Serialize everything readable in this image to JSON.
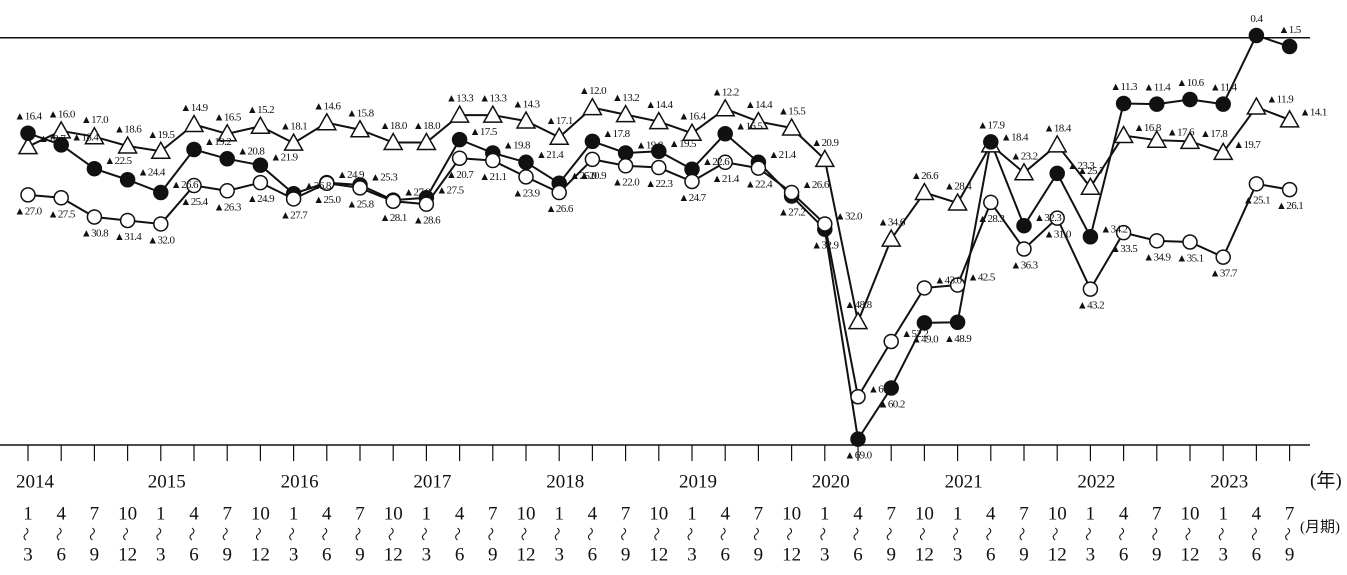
{
  "chart_data": {
    "type": "line",
    "ylim": [
      -70,
      6.5
    ],
    "hlines": [
      0,
      -70
    ],
    "years": [
      2014,
      2015,
      2016,
      2017,
      2018,
      2019,
      2020,
      2021,
      2022,
      2023
    ],
    "x_start": [
      1,
      4,
      7,
      10,
      1,
      4,
      7,
      10,
      1,
      4,
      7,
      10,
      1,
      4,
      7,
      10,
      1,
      4,
      7,
      10,
      1,
      4,
      7,
      10,
      1,
      4,
      7,
      10,
      1,
      4,
      7,
      10,
      1,
      4,
      7,
      10,
      1,
      4,
      7
    ],
    "x_end": [
      3,
      6,
      9,
      12,
      3,
      6,
      9,
      12,
      3,
      6,
      9,
      12,
      3,
      6,
      9,
      12,
      3,
      6,
      9,
      12,
      3,
      6,
      9,
      12,
      3,
      6,
      9,
      12,
      3,
      6,
      9,
      12,
      3,
      6,
      9,
      12,
      3,
      6,
      9
    ],
    "year_unit": "(年)",
    "period_unit": "(月期)",
    "series": [
      {
        "marker": "triangle",
        "color": "#111111",
        "values": [
          -18.7,
          -16.0,
          -17.0,
          -18.6,
          -19.5,
          -14.9,
          -16.5,
          -15.2,
          -18.1,
          -14.6,
          -15.8,
          -18.0,
          -18.0,
          -13.3,
          -13.3,
          -14.3,
          -17.1,
          -12.0,
          -13.2,
          -14.4,
          -16.4,
          -12.2,
          -14.4,
          -15.5,
          -20.9,
          -48.8,
          -34.6,
          -26.6,
          -28.4,
          -18.4,
          -23.2,
          -18.4,
          -25.7,
          -16.8,
          -17.6,
          -17.8,
          -19.7,
          -11.9,
          -14.1
        ],
        "value_labels": [
          "▲18.7",
          "▲16.0",
          "▲17.0",
          "▲18.6",
          "▲19.5",
          "▲14.9",
          "▲16.5",
          "▲15.2",
          "▲18.1",
          "▲14.6",
          "▲15.8",
          "▲18.0",
          "▲18.0",
          "▲13.3",
          "▲13.3",
          "▲14.3",
          "▲17.1",
          "▲12.0",
          "▲13.2",
          "▲14.4",
          "▲16.4",
          "▲12.2",
          "▲14.4",
          "▲15.5",
          "▲20.9",
          "▲48.8",
          "▲34.6",
          "▲26.6",
          "▲28.4",
          "▲18.4",
          "▲23.2",
          "▲18.4",
          "▲25.7",
          "▲16.8",
          "▲17.6",
          "▲17.8",
          "▲19.7",
          "▲11.9",
          "▲14.1"
        ]
      },
      {
        "marker": "filled-circle",
        "color": "#111111",
        "values": [
          -16.4,
          -18.4,
          -22.5,
          -24.4,
          -26.6,
          -19.2,
          -20.8,
          -21.9,
          -26.8,
          -24.9,
          -25.3,
          -27.9,
          -27.5,
          -17.5,
          -19.8,
          -21.4,
          -25.0,
          -17.8,
          -19.8,
          -19.5,
          -22.6,
          -16.5,
          -21.4,
          -27.2,
          -32.9,
          -69.0,
          -60.2,
          -49.0,
          -48.9,
          -17.9,
          -32.3,
          -23.3,
          -34.2,
          -11.3,
          -11.4,
          -10.6,
          -11.4,
          0.4,
          -1.5
        ],
        "value_labels": [
          "▲16.4",
          "▲18.4",
          "▲22.5",
          "▲24.4",
          "▲26.6",
          "▲19.2",
          "▲20.8",
          "▲21.9",
          "▲26.8",
          "▲24.9",
          "▲25.3",
          "▲27.9",
          "▲27.5",
          "▲17.5",
          "▲19.8",
          "▲21.4",
          "▲25.0",
          "▲17.8",
          "▲19.8",
          "▲19.5",
          "▲22.6",
          "▲16.5",
          "▲21.4",
          "▲27.2",
          "▲32.9",
          "▲69.0",
          "▲60.2",
          "▲49.0",
          "▲48.9",
          "▲17.9",
          "▲32.3",
          "▲23.3",
          "▲34.2",
          "▲11.3",
          "▲11.4",
          "▲10.6",
          "▲11.4",
          "0.4",
          "▲1.5"
        ]
      },
      {
        "marker": "open-circle",
        "color": "#111111",
        "values": [
          -27.0,
          -27.5,
          -30.8,
          -31.4,
          -32.0,
          -25.4,
          -26.3,
          -24.9,
          -27.7,
          -25.0,
          -25.8,
          -28.1,
          -28.6,
          -20.7,
          -21.1,
          -23.9,
          -26.6,
          -20.9,
          -22.0,
          -22.3,
          -24.7,
          -21.4,
          -22.4,
          -26.6,
          -32.0,
          -61.7,
          -52.2,
          -43.0,
          -42.5,
          -28.3,
          -36.3,
          -31.0,
          -43.2,
          -33.5,
          -34.9,
          -35.1,
          -37.7,
          -25.1,
          -26.1
        ],
        "value_labels": [
          "▲27.0",
          "▲27.5",
          "▲30.8",
          "▲31.4",
          "▲32.0",
          "▲25.4",
          "▲26.3",
          "▲24.9",
          "▲27.7",
          "▲25.0",
          "▲25.8",
          "▲28.1",
          "▲28.6",
          "▲20.7",
          "▲21.1",
          "▲23.9",
          "▲26.6",
          "▲20.9",
          "▲22.0",
          "▲22.3",
          "▲24.7",
          "▲21.4",
          "▲22.4",
          "▲26.6",
          "▲32.0",
          "▲61.7",
          "▲52.2",
          "▲43.0",
          "▲42.5",
          "▲28.3",
          "▲36.3",
          "▲31.0",
          "▲43.2",
          "▲33.5",
          "▲34.9",
          "▲35.1",
          "▲37.7",
          "▲25.1",
          "▲26.1"
        ]
      }
    ]
  }
}
